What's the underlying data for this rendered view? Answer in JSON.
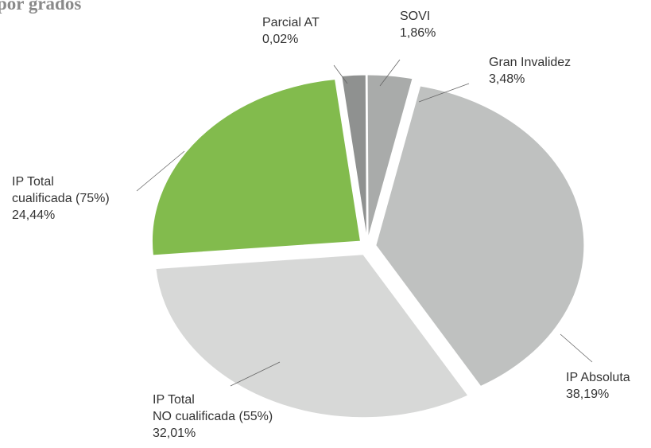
{
  "chart_data": {
    "type": "pie",
    "title": "por grados",
    "categories": [
      "Parcial AT",
      "SOVI",
      "Gran Invalidez",
      "IP Absoluta",
      "IP Total\nNO cualificada (55%)",
      "IP Total\ncualificada (75%)"
    ],
    "values": [
      0.02,
      1.86,
      3.48,
      38.19,
      32.01,
      24.44
    ],
    "value_labels": [
      "0,02%",
      "1,86%",
      "3,48%",
      "38,19%",
      "32,01%",
      "24,44%"
    ],
    "colors": [
      "#c9caca",
      "#8f9190",
      "#a9abaa",
      "#bfc1c0",
      "#d7d8d7",
      "#82bb4d"
    ]
  }
}
